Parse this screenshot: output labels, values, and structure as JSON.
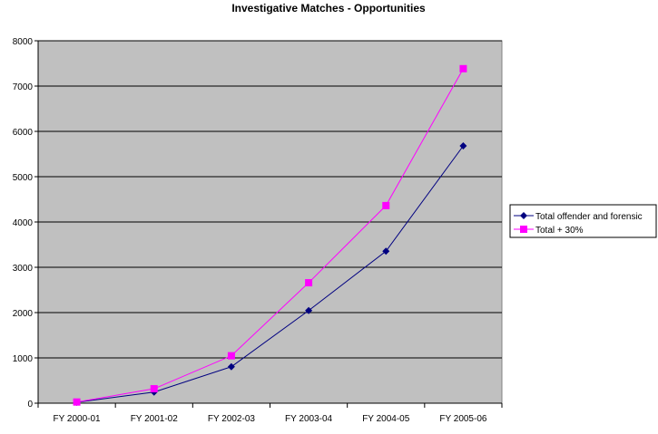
{
  "chart_data": {
    "type": "line",
    "title": "Investigative Matches - Opportunities",
    "xlabel": "",
    "ylabel": "",
    "categories": [
      "FY 2000-01",
      "FY 2001-02",
      "FY 2002-03",
      "FY 2003-04",
      "FY 2004-05",
      "FY 2005-06"
    ],
    "ylim": [
      0,
      8000
    ],
    "yticks": [
      0,
      1000,
      2000,
      3000,
      4000,
      5000,
      6000,
      7000,
      8000
    ],
    "grid": true,
    "legend_position": "right",
    "plot_background": "#c0c0c0",
    "series": [
      {
        "name": "Total offender and forensic",
        "color": "#000080",
        "marker": "diamond",
        "values": [
          20,
          245,
          805,
          2045,
          3355,
          5680
        ]
      },
      {
        "name": "Total + 30%",
        "color": "#ff00ff",
        "marker": "square",
        "values": [
          26,
          319,
          1047,
          2659,
          4362,
          7384
        ]
      }
    ]
  }
}
